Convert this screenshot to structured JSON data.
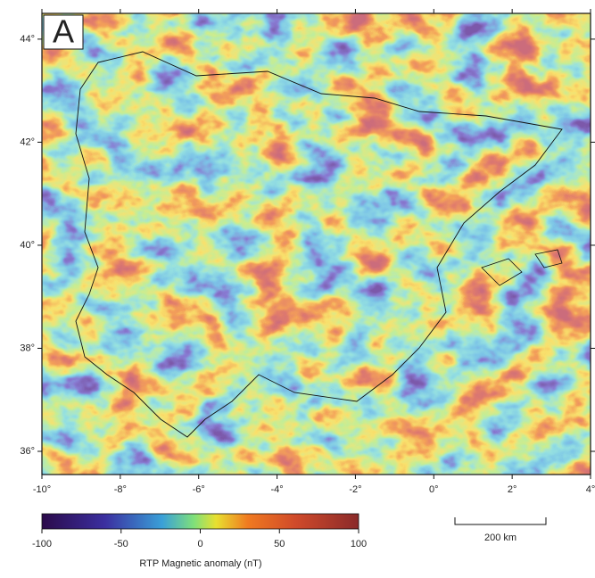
{
  "map": {
    "panel_label": "A",
    "xlim": [
      -10,
      4
    ],
    "ylim": [
      35.55,
      44.5
    ],
    "xticks": [
      {
        "value": -10,
        "label": "-10°"
      },
      {
        "value": -8,
        "label": "-8°"
      },
      {
        "value": -6,
        "label": "-6°"
      },
      {
        "value": -4,
        "label": "-4°"
      },
      {
        "value": -2,
        "label": "-2°"
      },
      {
        "value": 0,
        "label": "0°"
      },
      {
        "value": 2,
        "label": "2°"
      },
      {
        "value": 4,
        "label": "4°"
      }
    ],
    "yticks": [
      {
        "value": 36,
        "label": "36°"
      },
      {
        "value": 38,
        "label": "38°"
      },
      {
        "value": 40,
        "label": "40°"
      },
      {
        "value": 42,
        "label": "42°"
      },
      {
        "value": 44,
        "label": "44°"
      }
    ]
  },
  "colorbar": {
    "label": "RTP Magnetic anomaly (nT)",
    "lim": [
      -100,
      100
    ],
    "ticks": [
      -100,
      -50,
      0,
      50,
      100
    ]
  },
  "scale_bar": {
    "label": "200 km"
  }
}
